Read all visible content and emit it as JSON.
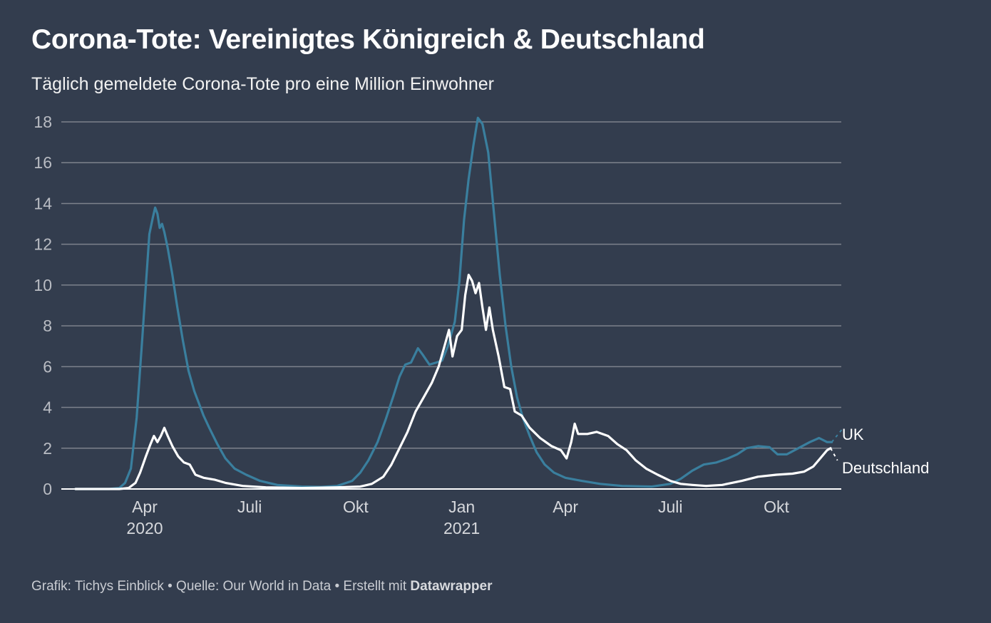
{
  "header": {
    "title": "Corona-Tote: Vereinigtes Königreich & Deutschland",
    "subtitle": "Täglich gemeldete Corona-Tote pro eine Million Einwohner"
  },
  "footer": {
    "text": "Grafik: Tichys Einblick • Quelle: Our World in Data • Erstellt mit ",
    "brand": "Datawrapper"
  },
  "colors": {
    "background": "#333d4e",
    "uk": "#3a7f9e",
    "de": "#ffffff",
    "grid": "#7d828c"
  },
  "chart_data": {
    "type": "line",
    "title": "Corona-Tote: Vereinigtes Königreich & Deutschland",
    "subtitle": "Täglich gemeldete Corona-Tote pro eine Million Einwohner",
    "xlabel": "",
    "ylabel": "",
    "ylim": [
      0,
      18
    ],
    "yticks": [
      0,
      2,
      4,
      6,
      8,
      10,
      12,
      14,
      16,
      18
    ],
    "xlim": [
      "2020-02-01",
      "2021-11-28"
    ],
    "xticks": [
      {
        "date": "2020-04-01",
        "label": "Apr",
        "sublabel": "2020"
      },
      {
        "date": "2020-07-01",
        "label": "Juli",
        "sublabel": ""
      },
      {
        "date": "2020-10-01",
        "label": "Okt",
        "sublabel": ""
      },
      {
        "date": "2021-01-01",
        "label": "Jan",
        "sublabel": "2021"
      },
      {
        "date": "2021-04-01",
        "label": "Apr",
        "sublabel": ""
      },
      {
        "date": "2021-07-01",
        "label": "Juli",
        "sublabel": ""
      },
      {
        "date": "2021-10-01",
        "label": "Okt",
        "sublabel": ""
      }
    ],
    "grid": true,
    "legend": "direct labels at line ends (right)",
    "series": [
      {
        "name": "UK",
        "label": "UK",
        "color": "#3a7f9e",
        "points": [
          [
            "2020-02-01",
            0
          ],
          [
            "2020-03-01",
            0
          ],
          [
            "2020-03-10",
            0.05
          ],
          [
            "2020-03-15",
            0.3
          ],
          [
            "2020-03-20",
            1.0
          ],
          [
            "2020-03-25",
            3.5
          ],
          [
            "2020-03-30",
            7.5
          ],
          [
            "2020-04-02",
            10.0
          ],
          [
            "2020-04-05",
            12.5
          ],
          [
            "2020-04-08",
            13.3
          ],
          [
            "2020-04-10",
            13.8
          ],
          [
            "2020-04-12",
            13.5
          ],
          [
            "2020-04-14",
            12.8
          ],
          [
            "2020-04-16",
            13.0
          ],
          [
            "2020-04-18",
            12.6
          ],
          [
            "2020-04-21",
            11.8
          ],
          [
            "2020-04-25",
            10.5
          ],
          [
            "2020-04-29",
            9.0
          ],
          [
            "2020-05-04",
            7.3
          ],
          [
            "2020-05-09",
            5.8
          ],
          [
            "2020-05-14",
            4.8
          ],
          [
            "2020-05-18",
            4.2
          ],
          [
            "2020-05-22",
            3.6
          ],
          [
            "2020-05-27",
            3.0
          ],
          [
            "2020-06-03",
            2.2
          ],
          [
            "2020-06-10",
            1.5
          ],
          [
            "2020-06-18",
            1.0
          ],
          [
            "2020-06-28",
            0.7
          ],
          [
            "2020-07-10",
            0.4
          ],
          [
            "2020-07-25",
            0.2
          ],
          [
            "2020-08-15",
            0.12
          ],
          [
            "2020-09-01",
            0.1
          ],
          [
            "2020-09-15",
            0.15
          ],
          [
            "2020-09-28",
            0.4
          ],
          [
            "2020-10-05",
            0.8
          ],
          [
            "2020-10-12",
            1.4
          ],
          [
            "2020-10-20",
            2.3
          ],
          [
            "2020-10-27",
            3.4
          ],
          [
            "2020-11-03",
            4.6
          ],
          [
            "2020-11-08",
            5.5
          ],
          [
            "2020-11-13",
            6.1
          ],
          [
            "2020-11-18",
            6.2
          ],
          [
            "2020-11-24",
            6.9
          ],
          [
            "2020-11-28",
            6.6
          ],
          [
            "2020-12-04",
            6.1
          ],
          [
            "2020-12-10",
            6.2
          ],
          [
            "2020-12-15",
            6.3
          ],
          [
            "2020-12-20",
            7.0
          ],
          [
            "2020-12-26",
            8.2
          ],
          [
            "2020-12-30",
            10.2
          ],
          [
            "2021-01-03",
            13.2
          ],
          [
            "2021-01-07",
            15.2
          ],
          [
            "2021-01-11",
            16.8
          ],
          [
            "2021-01-15",
            18.2
          ],
          [
            "2021-01-19",
            17.9
          ],
          [
            "2021-01-24",
            16.5
          ],
          [
            "2021-01-29",
            13.5
          ],
          [
            "2021-02-03",
            10.5
          ],
          [
            "2021-02-08",
            8.0
          ],
          [
            "2021-02-13",
            6.0
          ],
          [
            "2021-02-18",
            4.5
          ],
          [
            "2021-02-23",
            3.5
          ],
          [
            "2021-03-01",
            2.6
          ],
          [
            "2021-03-07",
            1.8
          ],
          [
            "2021-03-14",
            1.2
          ],
          [
            "2021-03-22",
            0.8
          ],
          [
            "2021-04-01",
            0.55
          ],
          [
            "2021-04-15",
            0.4
          ],
          [
            "2021-05-01",
            0.25
          ],
          [
            "2021-05-20",
            0.15
          ],
          [
            "2021-06-15",
            0.12
          ],
          [
            "2021-07-01",
            0.25
          ],
          [
            "2021-07-10",
            0.5
          ],
          [
            "2021-07-20",
            0.9
          ],
          [
            "2021-07-30",
            1.2
          ],
          [
            "2021-08-10",
            1.3
          ],
          [
            "2021-08-20",
            1.5
          ],
          [
            "2021-08-28",
            1.7
          ],
          [
            "2021-09-05",
            2.0
          ],
          [
            "2021-09-15",
            2.1
          ],
          [
            "2021-09-25",
            2.05
          ],
          [
            "2021-10-02",
            1.7
          ],
          [
            "2021-10-10",
            1.7
          ],
          [
            "2021-10-20",
            2.0
          ],
          [
            "2021-10-30",
            2.3
          ],
          [
            "2021-11-07",
            2.5
          ],
          [
            "2021-11-14",
            2.3
          ],
          [
            "2021-11-18",
            2.3
          ]
        ],
        "projection": [
          [
            "2021-11-18",
            2.3
          ],
          [
            "2021-11-28",
            3.0
          ]
        ]
      },
      {
        "name": "Deutschland",
        "label": "Deutschland",
        "color": "#ffffff",
        "points": [
          [
            "2020-02-01",
            0
          ],
          [
            "2020-03-10",
            0
          ],
          [
            "2020-03-18",
            0.05
          ],
          [
            "2020-03-24",
            0.3
          ],
          [
            "2020-03-28",
            0.8
          ],
          [
            "2020-04-02",
            1.6
          ],
          [
            "2020-04-06",
            2.2
          ],
          [
            "2020-04-09",
            2.6
          ],
          [
            "2020-04-12",
            2.3
          ],
          [
            "2020-04-15",
            2.6
          ],
          [
            "2020-04-18",
            3.0
          ],
          [
            "2020-04-21",
            2.6
          ],
          [
            "2020-04-25",
            2.1
          ],
          [
            "2020-04-30",
            1.6
          ],
          [
            "2020-05-05",
            1.3
          ],
          [
            "2020-05-10",
            1.2
          ],
          [
            "2020-05-15",
            0.7
          ],
          [
            "2020-05-22",
            0.55
          ],
          [
            "2020-06-01",
            0.45
          ],
          [
            "2020-06-10",
            0.3
          ],
          [
            "2020-06-25",
            0.15
          ],
          [
            "2020-07-15",
            0.08
          ],
          [
            "2020-08-15",
            0.05
          ],
          [
            "2020-09-15",
            0.08
          ],
          [
            "2020-10-05",
            0.12
          ],
          [
            "2020-10-15",
            0.25
          ],
          [
            "2020-10-25",
            0.6
          ],
          [
            "2020-11-01",
            1.2
          ],
          [
            "2020-11-08",
            2.0
          ],
          [
            "2020-11-15",
            2.8
          ],
          [
            "2020-11-22",
            3.8
          ],
          [
            "2020-11-29",
            4.5
          ],
          [
            "2020-12-06",
            5.2
          ],
          [
            "2020-12-12",
            6.0
          ],
          [
            "2020-12-17",
            7.0
          ],
          [
            "2020-12-21",
            7.8
          ],
          [
            "2020-12-24",
            6.5
          ],
          [
            "2020-12-28",
            7.5
          ],
          [
            "2021-01-01",
            7.8
          ],
          [
            "2021-01-04",
            9.5
          ],
          [
            "2021-01-07",
            10.5
          ],
          [
            "2021-01-10",
            10.2
          ],
          [
            "2021-01-13",
            9.6
          ],
          [
            "2021-01-16",
            10.1
          ],
          [
            "2021-01-19",
            8.9
          ],
          [
            "2021-01-22",
            7.8
          ],
          [
            "2021-01-25",
            8.9
          ],
          [
            "2021-01-28",
            7.8
          ],
          [
            "2021-02-02",
            6.5
          ],
          [
            "2021-02-07",
            5.0
          ],
          [
            "2021-02-12",
            4.9
          ],
          [
            "2021-02-16",
            3.8
          ],
          [
            "2021-02-22",
            3.6
          ],
          [
            "2021-03-01",
            3.0
          ],
          [
            "2021-03-10",
            2.5
          ],
          [
            "2021-03-20",
            2.1
          ],
          [
            "2021-03-28",
            1.9
          ],
          [
            "2021-04-02",
            1.5
          ],
          [
            "2021-04-06",
            2.3
          ],
          [
            "2021-04-09",
            3.2
          ],
          [
            "2021-04-12",
            2.7
          ],
          [
            "2021-04-20",
            2.7
          ],
          [
            "2021-04-28",
            2.8
          ],
          [
            "2021-05-08",
            2.6
          ],
          [
            "2021-05-16",
            2.2
          ],
          [
            "2021-05-24",
            1.9
          ],
          [
            "2021-06-01",
            1.4
          ],
          [
            "2021-06-10",
            1.0
          ],
          [
            "2021-06-20",
            0.7
          ],
          [
            "2021-07-01",
            0.4
          ],
          [
            "2021-07-10",
            0.25
          ],
          [
            "2021-07-20",
            0.2
          ],
          [
            "2021-08-01",
            0.15
          ],
          [
            "2021-08-15",
            0.2
          ],
          [
            "2021-09-01",
            0.4
          ],
          [
            "2021-09-15",
            0.6
          ],
          [
            "2021-10-01",
            0.7
          ],
          [
            "2021-10-15",
            0.75
          ],
          [
            "2021-10-25",
            0.85
          ],
          [
            "2021-11-02",
            1.1
          ],
          [
            "2021-11-08",
            1.5
          ],
          [
            "2021-11-14",
            1.9
          ],
          [
            "2021-11-17",
            2.0
          ]
        ],
        "projection": [
          [
            "2021-11-17",
            2.0
          ],
          [
            "2021-11-23",
            1.4
          ]
        ]
      }
    ]
  }
}
